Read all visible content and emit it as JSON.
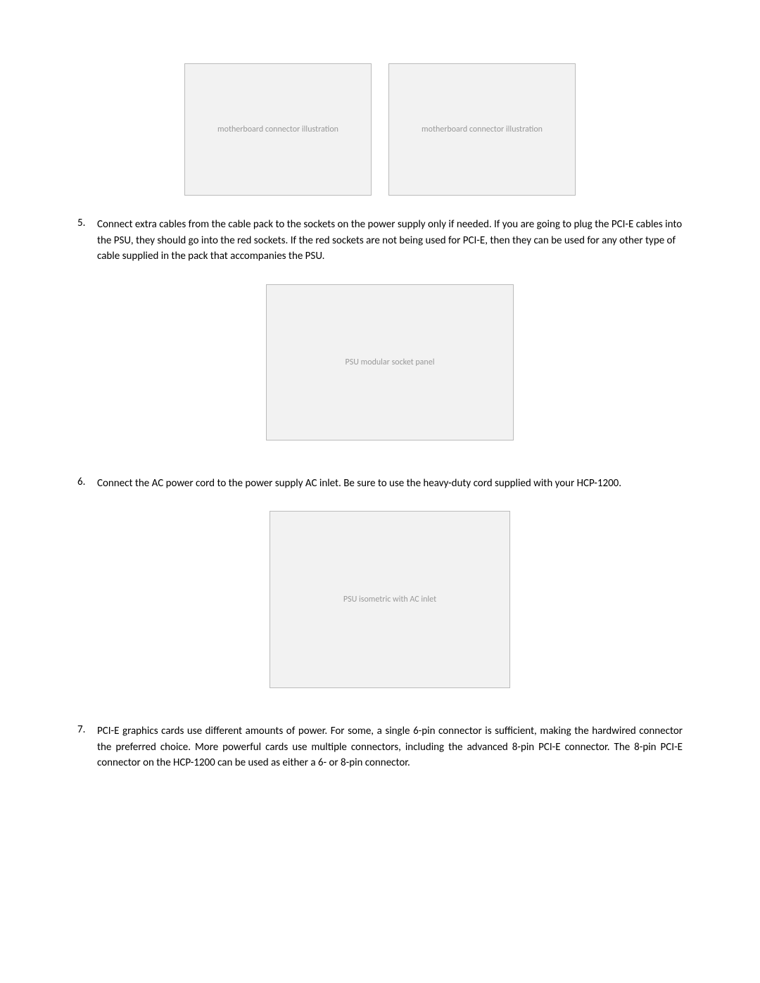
{
  "steps": [
    {
      "num": "5.",
      "text": "Connect extra cables from the cable pack to the sockets on the power supply only if needed. If you are going to plug the PCI-E cables into the PSU, they should go into the red sockets. If the red sockets are not being used for PCI-E, then they can be used for any other type of cable supplied in the pack that accompanies the PSU.",
      "justify": false
    },
    {
      "num": "6.",
      "text": "Connect the AC power cord to the power supply AC inlet. Be sure to use the heavy-duty cord supplied with your HCP-1200.",
      "justify": true
    },
    {
      "num": "7.",
      "text": "PCI-E graphics cards use different amounts of power. For some, a single 6-pin connector is sufficient, making the hardwired connector the preferred choice. More powerful cards use multiple connectors, including the advanced 8-pin PCI-E connector. The 8-pin PCI-E connector on the HCP-1200 can be used as either a 6- or 8-pin connector.",
      "justify": true
    }
  ],
  "figure_labels": {
    "top_left": "motherboard connector illustration",
    "top_right": "motherboard connector illustration",
    "psu_back": "PSU modular socket panel",
    "psu_iso": "PSU isometric with AC inlet"
  }
}
